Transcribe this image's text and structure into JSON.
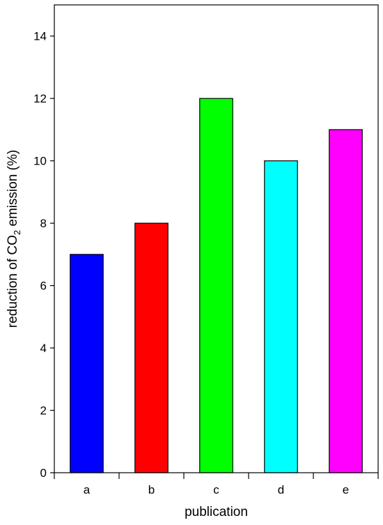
{
  "chart_data": {
    "type": "bar",
    "categories": [
      "a",
      "b",
      "c",
      "d",
      "e"
    ],
    "values": [
      7,
      8,
      12,
      10,
      11
    ],
    "colors": [
      "#0000ff",
      "#ff0000",
      "#00ff00",
      "#00ffff",
      "#ff00ff"
    ],
    "xlabel": "publication",
    "ylabel": {
      "prefix": "reduction of CO",
      "subscript": "2",
      "suffix": " emission (%)"
    },
    "ylim": [
      0,
      15
    ],
    "yticks": [
      0,
      2,
      4,
      6,
      8,
      10,
      12,
      14
    ],
    "ytick_labels": [
      "0",
      "2",
      "4",
      "6",
      "8",
      "10",
      "12",
      "14"
    ],
    "grid": false,
    "legend": false
  }
}
